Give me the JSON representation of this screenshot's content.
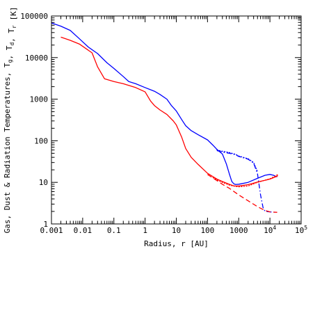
{
  "chart_data": {
    "type": "line",
    "xlabel": "Radius, r [AU]",
    "ylabel": "Gas, Dust & Radiation Temperatures, T_g, T_d, T_r [K]",
    "x_scale": "log",
    "y_scale": "log",
    "xlim": [
      0.001,
      100000
    ],
    "ylim": [
      1,
      100000
    ],
    "x_ticks": [
      {
        "value": 0.001,
        "label": "0.001"
      },
      {
        "value": 0.01,
        "label": "0.01"
      },
      {
        "value": 0.1,
        "label": "0.1"
      },
      {
        "value": 1,
        "label": "1"
      },
      {
        "value": 10,
        "label": "10"
      },
      {
        "value": 100,
        "label": "100"
      },
      {
        "value": 1000,
        "label": "1000"
      },
      {
        "value": 10000,
        "label": "10^4"
      },
      {
        "value": 100000,
        "label": "10^5"
      }
    ],
    "y_ticks": [
      {
        "value": 1,
        "label": "1"
      },
      {
        "value": 10,
        "label": "10"
      },
      {
        "value": 100,
        "label": "100"
      },
      {
        "value": 1000,
        "label": "1000"
      },
      {
        "value": 10000,
        "label": "10000"
      },
      {
        "value": 100000,
        "label": "100000"
      }
    ],
    "colors": {
      "blue": "#0000ff",
      "red": "#ff0000"
    },
    "series": [
      {
        "key": "blue_solid",
        "color": "blue",
        "dash": "solid",
        "points": [
          [
            0.001,
            68000
          ],
          [
            0.002,
            57000
          ],
          [
            0.004,
            45000
          ],
          [
            0.008,
            28000
          ],
          [
            0.015,
            18000
          ],
          [
            0.03,
            12500
          ],
          [
            0.06,
            7500
          ],
          [
            0.1,
            5500
          ],
          [
            0.2,
            3500
          ],
          [
            0.3,
            2650
          ],
          [
            0.5,
            2350
          ],
          [
            1,
            1900
          ],
          [
            2,
            1550
          ],
          [
            3,
            1300
          ],
          [
            5,
            1000
          ],
          [
            7,
            700
          ],
          [
            10,
            520
          ],
          [
            15,
            320
          ],
          [
            20,
            230
          ],
          [
            30,
            175
          ],
          [
            50,
            140
          ],
          [
            100,
            105
          ],
          [
            150,
            78
          ],
          [
            200,
            62
          ],
          [
            300,
            48
          ],
          [
            400,
            28
          ],
          [
            500,
            16
          ],
          [
            600,
            10.5
          ],
          [
            700,
            9.2
          ],
          [
            800,
            8.9
          ],
          [
            1000,
            9.0
          ],
          [
            2000,
            10
          ],
          [
            4000,
            12.5
          ],
          [
            7000,
            14.8
          ],
          [
            10000,
            15.5
          ],
          [
            13000,
            14.8
          ],
          [
            17000,
            13.5
          ]
        ]
      },
      {
        "key": "blue_dashdot",
        "color": "blue",
        "dash": "dashdot",
        "points": [
          [
            200,
            58
          ],
          [
            300,
            53
          ],
          [
            500,
            50
          ],
          [
            800,
            46
          ],
          [
            1000,
            42
          ],
          [
            2000,
            36
          ],
          [
            3000,
            29
          ],
          [
            4000,
            16
          ],
          [
            5000,
            5
          ],
          [
            6000,
            2.5
          ],
          [
            7000,
            2.0
          ],
          [
            10000,
            1.95
          ],
          [
            17000,
            1.9
          ]
        ]
      },
      {
        "key": "red_solid",
        "color": "red",
        "dash": "solid",
        "points": [
          [
            0.002,
            31000
          ],
          [
            0.004,
            26000
          ],
          [
            0.008,
            21000
          ],
          [
            0.02,
            13000
          ],
          [
            0.03,
            6000
          ],
          [
            0.05,
            3100
          ],
          [
            0.1,
            2650
          ],
          [
            0.2,
            2350
          ],
          [
            0.5,
            1900
          ],
          [
            1,
            1500
          ],
          [
            1.5,
            900
          ],
          [
            2,
            700
          ],
          [
            3,
            550
          ],
          [
            5,
            430
          ],
          [
            8,
            300
          ],
          [
            10,
            240
          ],
          [
            15,
            120
          ],
          [
            20,
            65
          ],
          [
            30,
            40
          ],
          [
            50,
            27
          ],
          [
            100,
            16.5
          ],
          [
            200,
            12
          ],
          [
            300,
            10.5
          ],
          [
            500,
            9
          ],
          [
            700,
            8.2
          ],
          [
            1000,
            8.2
          ],
          [
            2000,
            8.8
          ],
          [
            4000,
            10.2
          ],
          [
            8000,
            11.5
          ],
          [
            10000,
            12
          ],
          [
            15000,
            13.5
          ],
          [
            18000,
            14.5
          ]
        ]
      },
      {
        "key": "red_dotted",
        "color": "red",
        "dash": "dotted",
        "points": [
          [
            150,
            13
          ],
          [
            200,
            11.5
          ],
          [
            300,
            10
          ],
          [
            500,
            8.6
          ],
          [
            800,
            8
          ],
          [
            1000,
            7.8
          ],
          [
            2000,
            8.2
          ],
          [
            4000,
            10.0
          ],
          [
            7000,
            11.3
          ],
          [
            10000,
            12.2
          ],
          [
            15000,
            14.2
          ],
          [
            18000,
            15.5
          ]
        ]
      },
      {
        "key": "blue_dotted",
        "color": "blue",
        "dash": "dotted",
        "points": [
          [
            200,
            60
          ],
          [
            300,
            56
          ],
          [
            500,
            52
          ],
          [
            800,
            47
          ],
          [
            1000,
            43
          ],
          [
            2000,
            37
          ],
          [
            3000,
            30
          ],
          [
            4000,
            18
          ]
        ]
      },
      {
        "key": "red_dashed",
        "color": "red",
        "dash": "dashed",
        "points": [
          [
            100,
            15.5
          ],
          [
            200,
            11
          ],
          [
            300,
            9
          ],
          [
            500,
            7.2
          ],
          [
            1000,
            5.0
          ],
          [
            2000,
            3.6
          ],
          [
            4000,
            2.6
          ],
          [
            7000,
            2.1
          ],
          [
            10000,
            1.95
          ],
          [
            17000,
            1.9
          ]
        ]
      }
    ]
  }
}
